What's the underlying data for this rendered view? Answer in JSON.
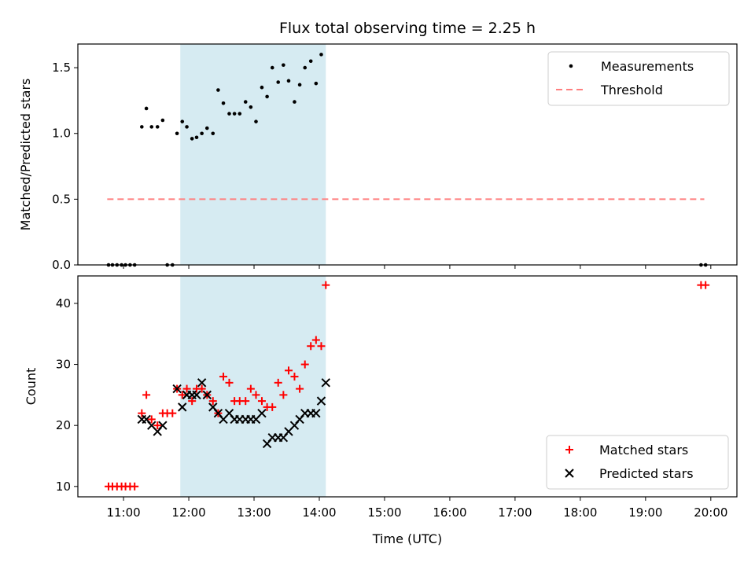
{
  "chart_data": {
    "title": "Flux total observing time = 2.25 h",
    "xlabel": "Time (UTC)",
    "x_tick_labels": [
      "11:00",
      "12:00",
      "13:00",
      "14:00",
      "15:00",
      "16:00",
      "17:00",
      "18:00",
      "19:00",
      "20:00"
    ],
    "x_range_hours": [
      10.3,
      20.4
    ],
    "shaded_interval_hours": [
      11.87,
      14.1
    ],
    "colors": {
      "shade": "#add8e6",
      "threshold": "#ff7f7f",
      "matched": "#ff0000",
      "predicted": "#000000",
      "measurements": "#000000"
    },
    "panels": [
      {
        "type": "scatter",
        "ylabel": "Matched/Predicted stars",
        "ylim": [
          0,
          1.68
        ],
        "y_ticks": [
          0.0,
          0.5,
          1.0,
          1.5
        ],
        "y_tick_labels": [
          "0.0",
          "0.5",
          "1.0",
          "1.5"
        ],
        "legend": {
          "placement": "top-right",
          "entries": [
            "Measurements",
            "Threshold"
          ]
        },
        "threshold": {
          "name": "Threshold",
          "y": 0.5,
          "x": [
            10.75,
            19.9
          ]
        },
        "series": [
          {
            "name": "Measurements",
            "points": [
              [
                10.77,
                0
              ],
              [
                10.83,
                0
              ],
              [
                10.9,
                0
              ],
              [
                10.97,
                0
              ],
              [
                11.03,
                0
              ],
              [
                11.1,
                0
              ],
              [
                11.17,
                0
              ],
              [
                11.28,
                1.05
              ],
              [
                11.35,
                1.19
              ],
              [
                11.43,
                1.05
              ],
              [
                11.52,
                1.05
              ],
              [
                11.6,
                1.1
              ],
              [
                11.67,
                0
              ],
              [
                11.75,
                0
              ],
              [
                11.82,
                1.0
              ],
              [
                11.9,
                1.09
              ],
              [
                11.97,
                1.05
              ],
              [
                12.05,
                0.96
              ],
              [
                12.12,
                0.97
              ],
              [
                12.2,
                1.0
              ],
              [
                12.28,
                1.04
              ],
              [
                12.37,
                1.0
              ],
              [
                12.45,
                1.33
              ],
              [
                12.53,
                1.23
              ],
              [
                12.62,
                1.15
              ],
              [
                12.7,
                1.15
              ],
              [
                12.78,
                1.15
              ],
              [
                12.87,
                1.24
              ],
              [
                12.95,
                1.2
              ],
              [
                13.03,
                1.09
              ],
              [
                13.12,
                1.35
              ],
              [
                13.2,
                1.28
              ],
              [
                13.28,
                1.5
              ],
              [
                13.37,
                1.39
              ],
              [
                13.45,
                1.52
              ],
              [
                13.53,
                1.4
              ],
              [
                13.62,
                1.24
              ],
              [
                13.7,
                1.37
              ],
              [
                13.78,
                1.5
              ],
              [
                13.87,
                1.55
              ],
              [
                13.95,
                1.38
              ],
              [
                14.03,
                1.6
              ],
              [
                19.85,
                0
              ],
              [
                19.92,
                0
              ]
            ]
          }
        ]
      },
      {
        "type": "scatter",
        "ylabel": "Count",
        "ylim": [
          8.3,
          44.5
        ],
        "y_ticks": [
          10,
          20,
          30,
          40
        ],
        "y_tick_labels": [
          "10",
          "20",
          "30",
          "40"
        ],
        "legend": {
          "placement": "bottom-right",
          "entries": [
            "Matched stars",
            "Predicted stars"
          ]
        },
        "series": [
          {
            "name": "Matched stars",
            "marker": "plus",
            "points": [
              [
                10.77,
                10
              ],
              [
                10.83,
                10
              ],
              [
                10.9,
                10
              ],
              [
                10.97,
                10
              ],
              [
                11.03,
                10
              ],
              [
                11.1,
                10
              ],
              [
                11.17,
                10
              ],
              [
                11.28,
                22
              ],
              [
                11.35,
                25
              ],
              [
                11.43,
                21
              ],
              [
                11.52,
                20
              ],
              [
                11.6,
                22
              ],
              [
                11.67,
                22
              ],
              [
                11.75,
                22
              ],
              [
                11.82,
                26
              ],
              [
                11.9,
                25
              ],
              [
                11.97,
                26
              ],
              [
                12.05,
                24
              ],
              [
                12.12,
                26
              ],
              [
                12.2,
                26
              ],
              [
                12.28,
                25
              ],
              [
                12.37,
                24
              ],
              [
                12.45,
                22
              ],
              [
                12.53,
                28
              ],
              [
                12.62,
                27
              ],
              [
                12.7,
                24
              ],
              [
                12.78,
                24
              ],
              [
                12.87,
                24
              ],
              [
                12.95,
                26
              ],
              [
                13.03,
                25
              ],
              [
                13.12,
                24
              ],
              [
                13.2,
                23
              ],
              [
                13.28,
                23
              ],
              [
                13.37,
                27
              ],
              [
                13.45,
                25
              ],
              [
                13.53,
                29
              ],
              [
                13.62,
                28
              ],
              [
                13.7,
                26
              ],
              [
                13.78,
                30
              ],
              [
                13.87,
                33
              ],
              [
                13.95,
                34
              ],
              [
                14.03,
                33
              ],
              [
                14.1,
                43
              ],
              [
                19.85,
                43
              ],
              [
                19.92,
                43
              ]
            ]
          },
          {
            "name": "Predicted stars",
            "marker": "x",
            "points": [
              [
                11.28,
                21
              ],
              [
                11.35,
                21
              ],
              [
                11.43,
                20
              ],
              [
                11.52,
                19
              ],
              [
                11.6,
                20
              ],
              [
                11.82,
                26
              ],
              [
                11.9,
                23
              ],
              [
                11.97,
                25
              ],
              [
                12.05,
                25
              ],
              [
                12.12,
                25
              ],
              [
                12.2,
                27
              ],
              [
                12.28,
                25
              ],
              [
                12.37,
                23
              ],
              [
                12.45,
                22
              ],
              [
                12.53,
                21
              ],
              [
                12.62,
                22
              ],
              [
                12.7,
                21
              ],
              [
                12.78,
                21
              ],
              [
                12.87,
                21
              ],
              [
                12.95,
                21
              ],
              [
                13.03,
                21
              ],
              [
                13.12,
                22
              ],
              [
                13.2,
                17
              ],
              [
                13.28,
                18
              ],
              [
                13.37,
                18
              ],
              [
                13.45,
                18
              ],
              [
                13.53,
                19
              ],
              [
                13.62,
                20
              ],
              [
                13.7,
                21
              ],
              [
                13.78,
                22
              ],
              [
                13.87,
                22
              ],
              [
                13.95,
                22
              ],
              [
                14.03,
                24
              ],
              [
                14.1,
                27
              ]
            ]
          }
        ]
      }
    ]
  }
}
